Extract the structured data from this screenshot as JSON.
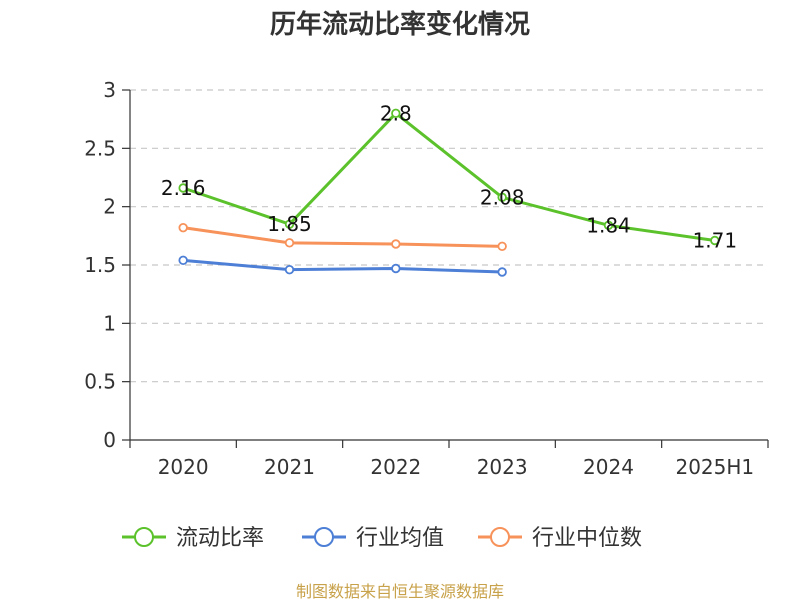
{
  "title": "历年流动比率变化情况",
  "source_note": "制图数据来自恒生聚源数据库",
  "chart_data": {
    "type": "line",
    "title": "历年流动比率变化情况",
    "categories": [
      "2020",
      "2021",
      "2022",
      "2023",
      "2024",
      "2025H1"
    ],
    "xlabel": "",
    "ylabel": "",
    "ylim": [
      0,
      3
    ],
    "yticks": [
      0,
      0.5,
      1,
      1.5,
      2,
      2.5,
      3
    ],
    "ytick_labels": [
      "0",
      "0.5",
      "1",
      "1.5",
      "2",
      "2.5",
      "3"
    ],
    "grid": true,
    "legend_position": "bottom",
    "series": [
      {
        "name": "流动比率",
        "color": "#5cc22c",
        "values": [
          2.16,
          1.85,
          2.8,
          2.08,
          1.84,
          1.71
        ],
        "data_labels": [
          "2.16",
          "1.85",
          "2.8",
          "2.08",
          "1.84",
          "1.71"
        ]
      },
      {
        "name": "行业均值",
        "color": "#4d7fd6",
        "values": [
          1.54,
          1.46,
          1.47,
          1.44,
          null,
          null
        ]
      },
      {
        "name": "行业中位数",
        "color": "#f7925a",
        "values": [
          1.82,
          1.69,
          1.68,
          1.66,
          null,
          null
        ]
      }
    ]
  }
}
